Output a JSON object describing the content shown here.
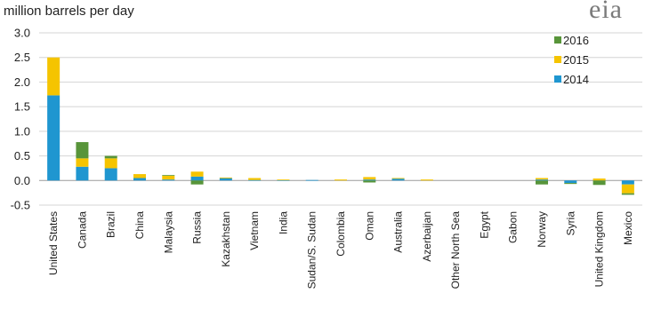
{
  "chart_data": {
    "type": "bar",
    "stacked": true,
    "title": "",
    "ylabel": "million barrels per day",
    "xlabel": "",
    "ylim": [
      -0.5,
      3.0
    ],
    "yticks": [
      "3.0",
      "2.5",
      "2.0",
      "1.5",
      "1.0",
      "0.5",
      "0.0",
      "-0.5"
    ],
    "ytick_values": [
      3.0,
      2.5,
      2.0,
      1.5,
      1.0,
      0.5,
      0.0,
      -0.5
    ],
    "grid": true,
    "legend_position": "top-right",
    "categories": [
      "United States",
      "Canada",
      "Brazil",
      "China",
      "Malaysia",
      "Russia",
      "Kazakhstan",
      "Vietnam",
      "India",
      "Sudan/S. Sudan",
      "Colombia",
      "Oman",
      "Australia",
      "Azerbaijan",
      "Other North Sea",
      "Egypt",
      "Gabon",
      "Norway",
      "Syria",
      "United Kingdom",
      "Mexico"
    ],
    "series": [
      {
        "name": "2014",
        "color": "#1f96d0",
        "values": [
          1.73,
          0.28,
          0.25,
          0.05,
          0.02,
          0.08,
          0.05,
          0.01,
          0.01,
          0.01,
          0.0,
          0.02,
          0.04,
          0.0,
          0.0,
          0.0,
          0.0,
          0.02,
          -0.05,
          0.0,
          -0.08
        ]
      },
      {
        "name": "2015",
        "color": "#f5c400",
        "values": [
          0.77,
          0.17,
          0.2,
          0.08,
          0.08,
          0.1,
          0.01,
          0.04,
          0.01,
          0.0,
          0.02,
          0.05,
          0.01,
          0.02,
          0.0,
          0.0,
          0.0,
          0.03,
          0.0,
          0.04,
          -0.18
        ]
      },
      {
        "name": "2016",
        "color": "#58953a",
        "values": [
          0.0,
          0.33,
          0.05,
          0.0,
          0.01,
          -0.08,
          0.0,
          0.0,
          0.0,
          0.0,
          0.0,
          -0.04,
          0.0,
          0.0,
          0.0,
          0.0,
          0.0,
          -0.08,
          -0.02,
          -0.09,
          -0.03
        ]
      }
    ],
    "legend_order": [
      "2016",
      "2015",
      "2014"
    ]
  },
  "brand": {
    "logo_text": "eia"
  }
}
